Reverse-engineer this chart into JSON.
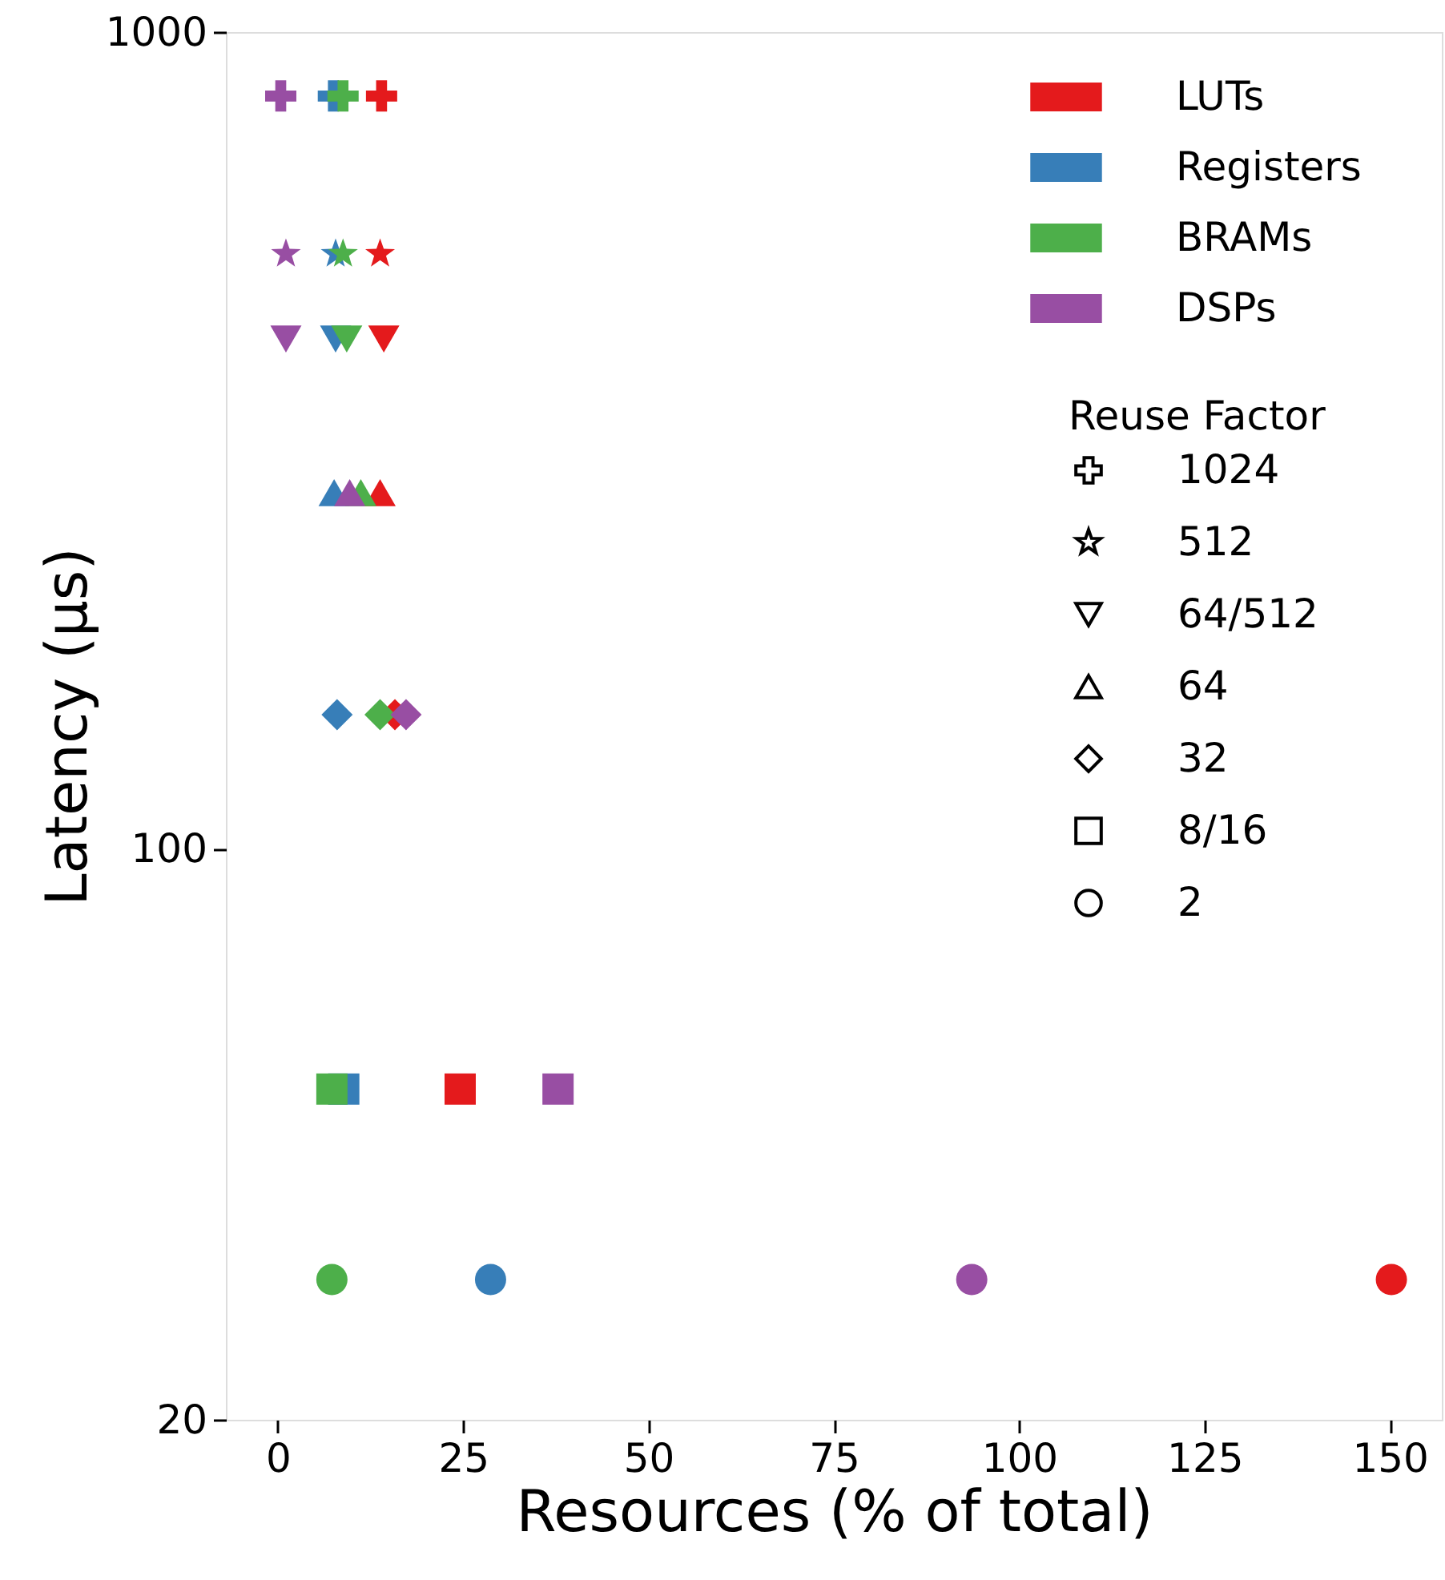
{
  "chart_data": {
    "type": "scatter",
    "xlabel": "Resources (% of total)",
    "ylabel": "Latency (µs)",
    "log": "y",
    "xlim": [
      -7,
      157
    ],
    "ylim": [
      20,
      1000
    ],
    "xticks": [
      0,
      25,
      50,
      75,
      100,
      125,
      150
    ],
    "yticks": [
      20,
      100,
      1000
    ],
    "grid": false,
    "legend": "top right",
    "legend_title": "Reuse Factor",
    "series": [
      {
        "name": "LUTs",
        "color": "#e41a1c",
        "x": [
          14,
          13.8,
          14.3,
          13.8,
          15.8,
          24.6,
          150.2
        ],
        "values": [
          835,
          535,
          421,
          273,
          146,
          50.8,
          29.7
        ],
        "marker": [
          "cross",
          "star",
          "triangle_down",
          "triangle",
          "diamond",
          "square",
          "circle"
        ]
      },
      {
        "name": "Registers",
        "color": "#377eb8",
        "x": [
          7.5,
          7.8,
          7.8,
          7.6,
          8,
          8.9,
          28.7
        ],
        "values": [
          835,
          535,
          421,
          273,
          146,
          50.8,
          29.7
        ],
        "marker": [
          "cross",
          "star",
          "triangle_down",
          "triangle",
          "diamond",
          "square",
          "circle"
        ]
      },
      {
        "name": "BRAMs",
        "color": "#4daf4a",
        "x": [
          8.8,
          8.8,
          9.3,
          11.2,
          13.8,
          7.3,
          7.3
        ],
        "values": [
          835,
          535,
          421,
          273,
          146,
          50.8,
          29.7
        ],
        "marker": [
          "cross",
          "star",
          "triangle_down",
          "triangle",
          "diamond",
          "square",
          "circle"
        ]
      },
      {
        "name": "DSPs",
        "color": "#984ea3",
        "x": [
          0.4,
          1.1,
          1.1,
          9.7,
          17.3,
          37.8,
          93.6
        ],
        "values": [
          835,
          535,
          421,
          273,
          146,
          50.8,
          29.7
        ],
        "marker": [
          "cross",
          "star",
          "triangle_down",
          "triangle",
          "diamond",
          "square",
          "circle"
        ]
      },
      {
        "name": "1024",
        "marker": "cross"
      },
      {
        "name": "512",
        "marker": "star"
      },
      {
        "name": "64/512",
        "marker": "triangle_down"
      },
      {
        "name": "64",
        "marker": "triangle"
      },
      {
        "name": "32",
        "marker": "diamond"
      },
      {
        "name": "8/16",
        "marker": "square"
      },
      {
        "name": "2",
        "marker": "circle"
      }
    ]
  }
}
